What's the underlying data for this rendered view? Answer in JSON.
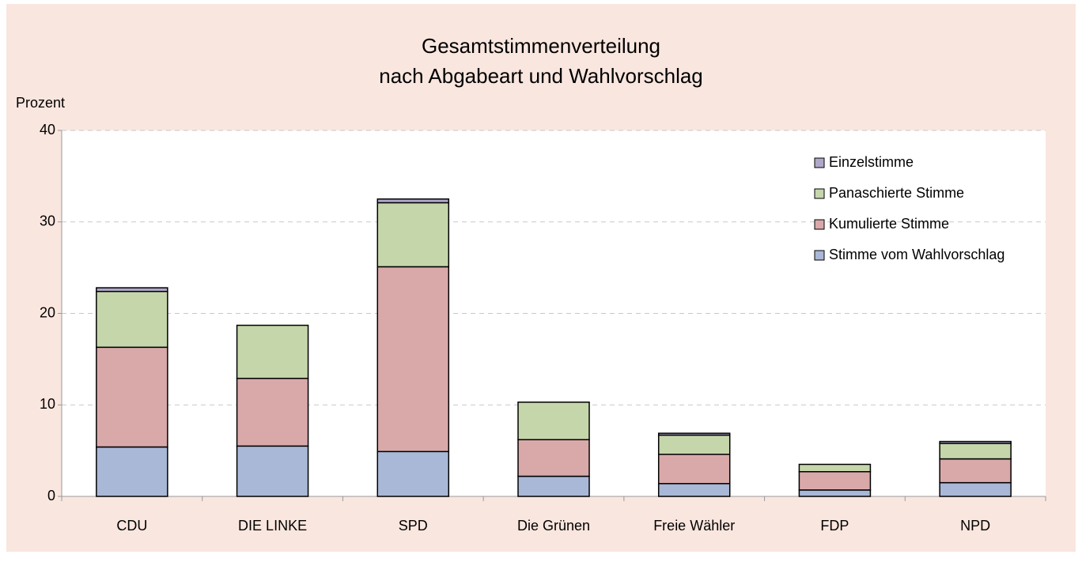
{
  "chart_data": {
    "type": "stacked_bar",
    "title": "Gesamtstimmenverteilung",
    "subtitle": "nach Abgabeart und Wahlvorschlag",
    "y_label": "Prozent",
    "categories": [
      "CDU",
      "DIE LINKE",
      "SPD",
      "Die Grünen",
      "Freie Wähler",
      "FDP",
      "NPD"
    ],
    "series": [
      {
        "name": "Stimme vom Wahlvorschlag",
        "color": "#a9b8d6",
        "values": [
          5.4,
          5.5,
          4.9,
          2.2,
          1.4,
          0.7,
          1.5
        ]
      },
      {
        "name": "Kumulierte Stimme",
        "color": "#d9a9aa",
        "values": [
          10.9,
          7.4,
          20.2,
          4.0,
          3.2,
          2.0,
          2.6
        ]
      },
      {
        "name": "Panaschierte Stimme",
        "color": "#c5d6ab",
        "values": [
          6.1,
          5.8,
          7.0,
          4.1,
          2.1,
          0.8,
          1.7
        ]
      },
      {
        "name": "Einzelstimme",
        "color": "#b0a8c8",
        "values": [
          0.4,
          0.0,
          0.4,
          0.0,
          0.2,
          0.0,
          0.2
        ]
      }
    ],
    "ylim": [
      0,
      40
    ],
    "yticks": [
      0,
      10,
      20,
      30,
      40
    ],
    "grid": true,
    "legend": "top-right"
  }
}
